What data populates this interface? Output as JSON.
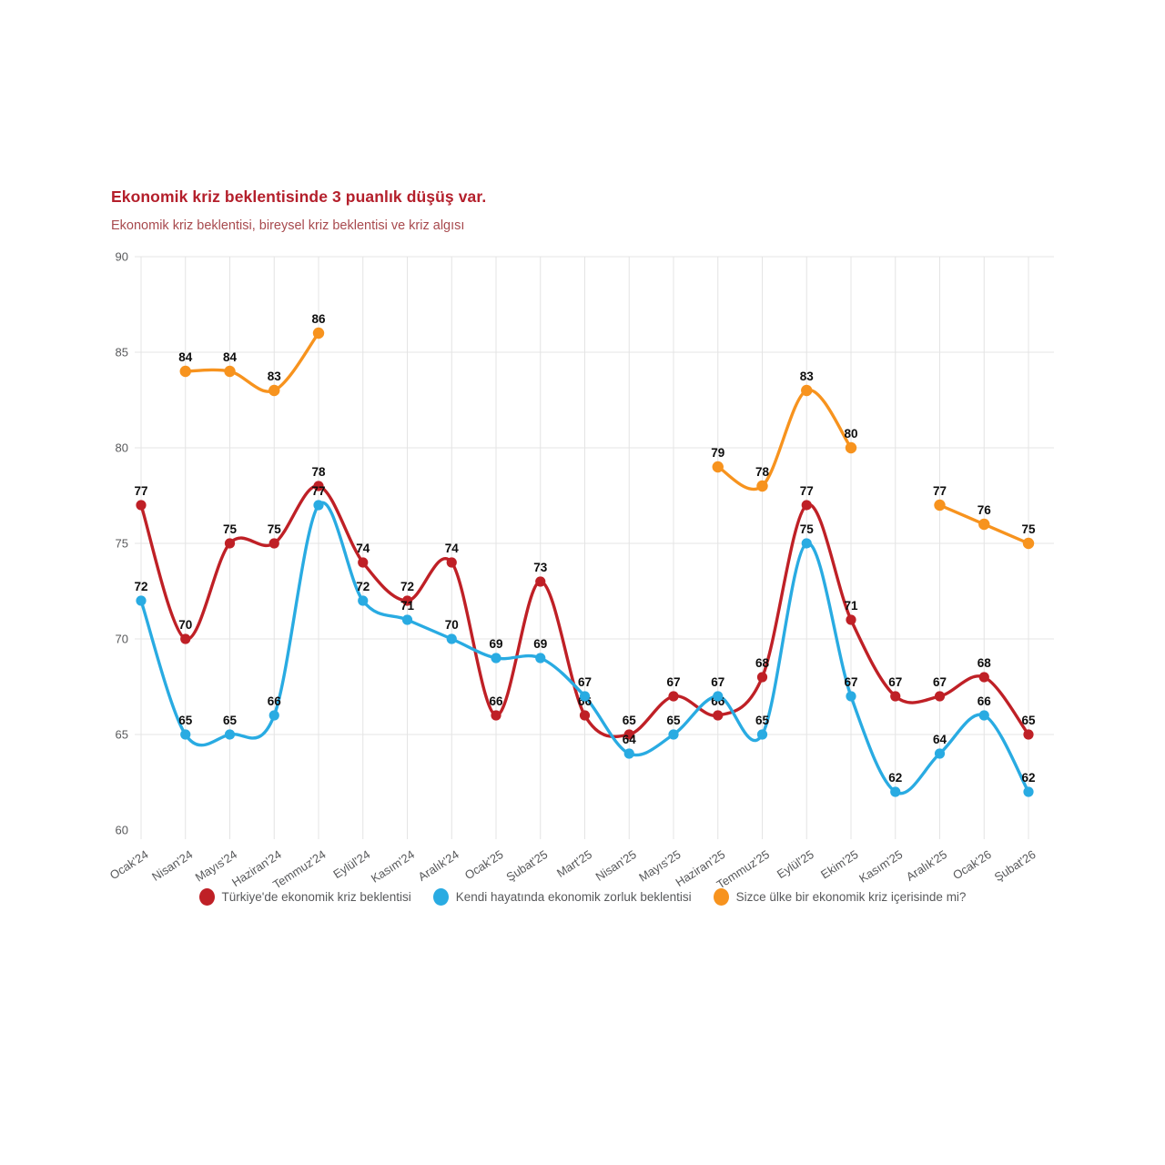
{
  "header": {
    "title": "Ekonomik kriz beklentisinde 3 puanlık düşüş var.",
    "subtitle": "Ekonomik kriz beklentisi, bireysel kriz beklentisi ve kriz algısı",
    "title_color": "#b41f2b",
    "subtitle_color": "#a84a4e"
  },
  "chart_data": {
    "type": "line",
    "title": "Ekonomik kriz beklentisinde 3 puanlık düşüş var.",
    "subtitle": "Ekonomik kriz beklentisi, bireysel kriz beklentisi ve kriz algısı",
    "categories": [
      "Ocak'24",
      "Nisan'24",
      "Mayıs'24",
      "Haziran'24",
      "Temmuz'24",
      "Eylül'24",
      "Kasım'24",
      "Aralık'24",
      "Ocak'25",
      "Şubat'25",
      "Mart'25",
      "Nisan'25",
      "Mayıs'25",
      "Haziran'25",
      "Temmuz'25",
      "Eylül'25",
      "Ekim'25",
      "Kasım'25",
      "Aralık'25",
      "Ocak'26",
      "Şubat'26"
    ],
    "series": [
      {
        "name": "Türkiye'de ekonomik kriz beklentisi",
        "color": "#bf2026",
        "values": [
          77,
          70,
          75,
          75,
          78,
          74,
          72,
          74,
          66,
          73,
          66,
          65,
          67,
          66,
          68,
          77,
          71,
          67,
          67,
          68,
          65
        ]
      },
      {
        "name": "Kendi hayatında ekonomik zorluk beklentisi",
        "color": "#29abe2",
        "values": [
          72,
          65,
          65,
          66,
          77,
          72,
          71,
          70,
          69,
          69,
          67,
          64,
          65,
          67,
          65,
          75,
          67,
          62,
          64,
          66,
          62
        ]
      },
      {
        "name": "Sizce ülke bir ekonomik kriz içerisinde mi?",
        "color": "#f7931e",
        "values": [
          null,
          84,
          84,
          83,
          86,
          null,
          null,
          null,
          null,
          null,
          null,
          null,
          null,
          79,
          78,
          83,
          80,
          null,
          77,
          76,
          75
        ]
      }
    ],
    "ylim": [
      60,
      90
    ],
    "yticks": [
      60,
      65,
      70,
      75,
      80,
      85,
      90
    ],
    "grid": true,
    "data_labels": true,
    "legend_position": "bottom",
    "axis_text_color": "#58595b",
    "grid_color": "#e4e4e4",
    "label_color": "#0d0d0d"
  }
}
